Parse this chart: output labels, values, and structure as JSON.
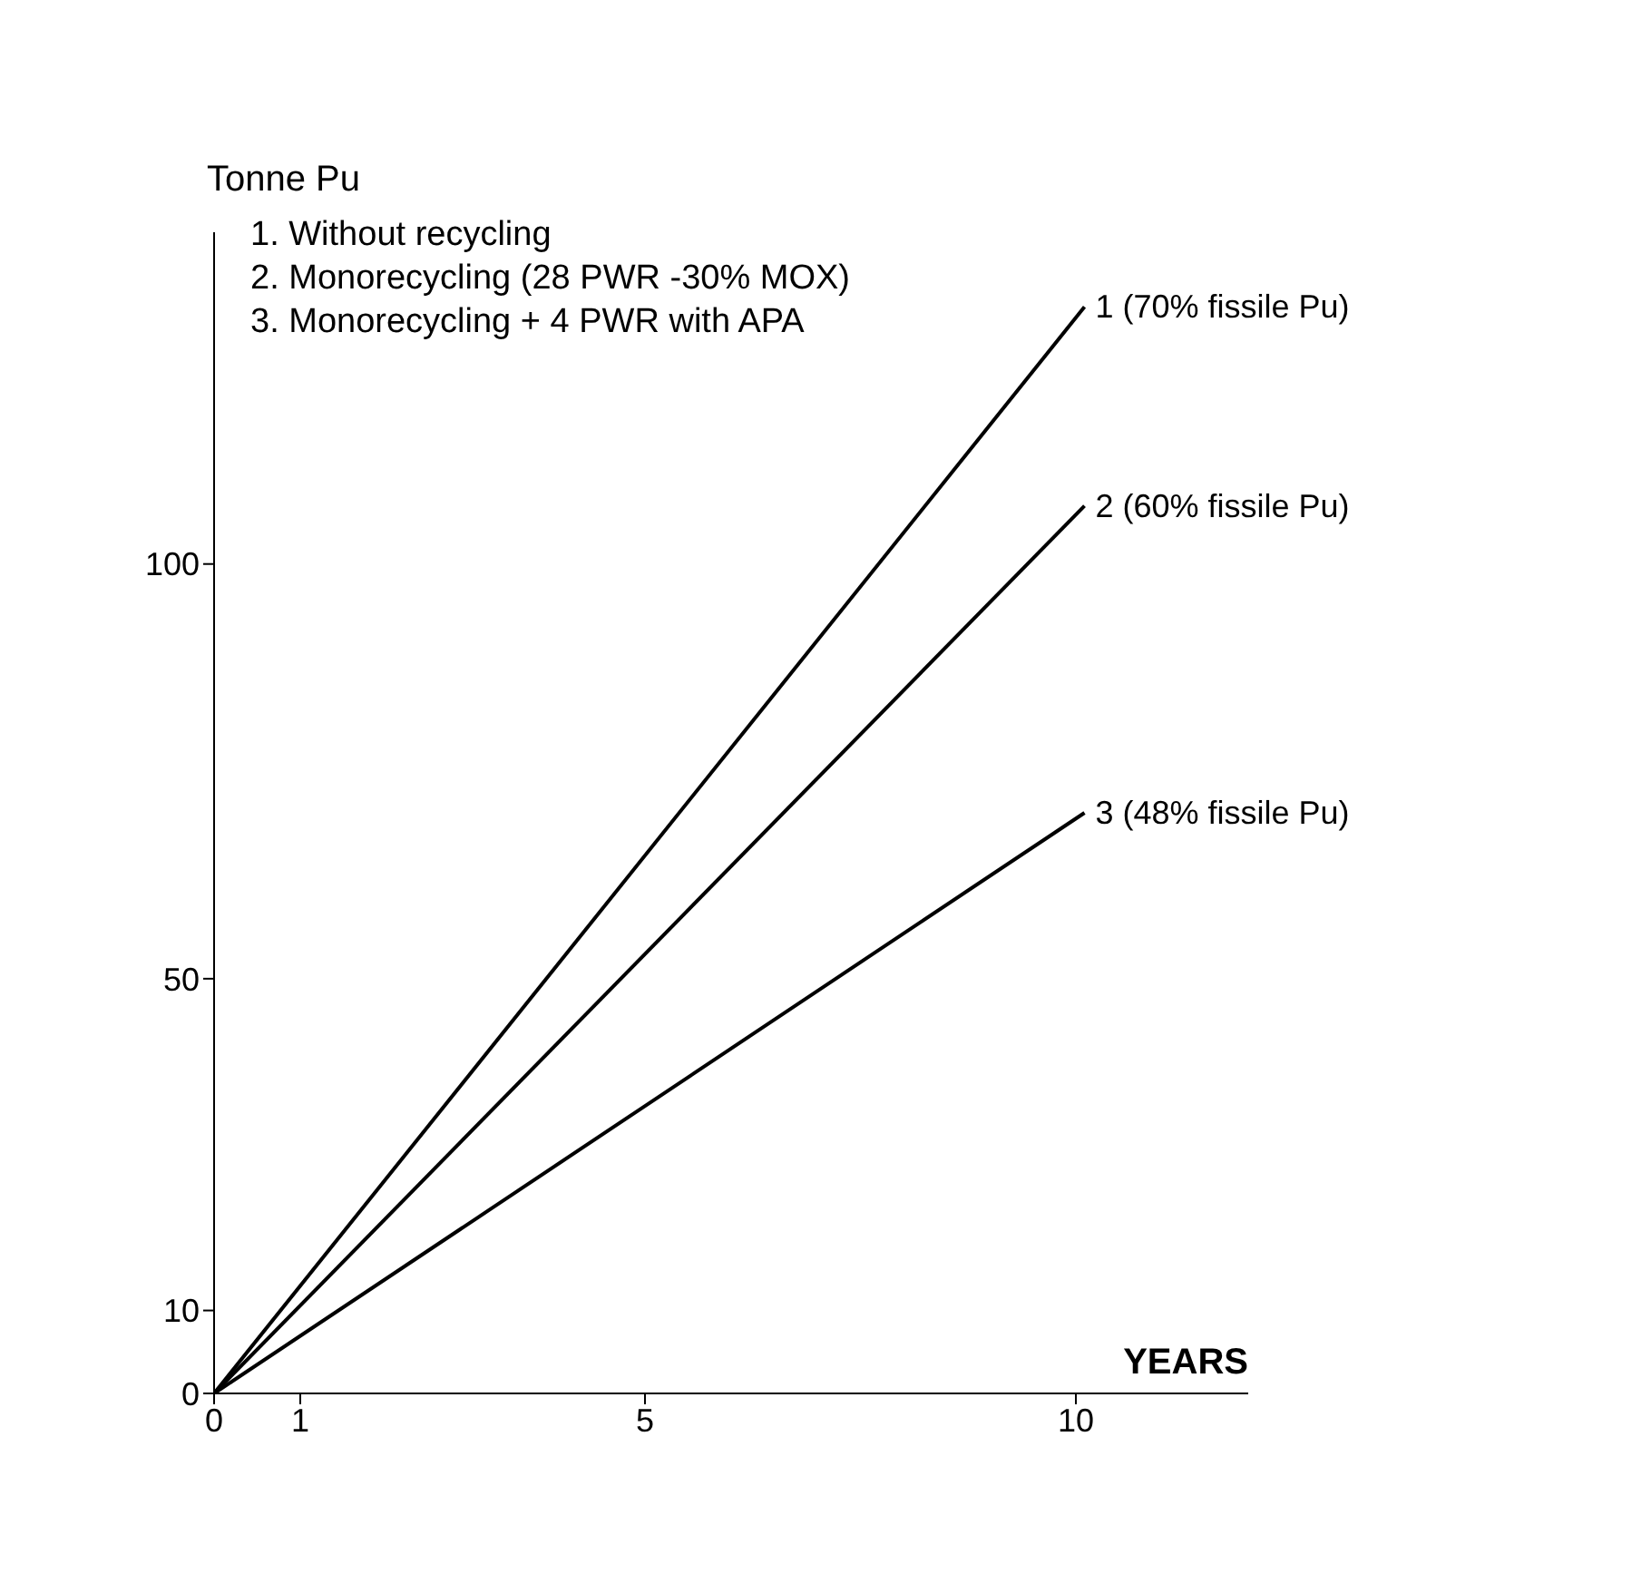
{
  "chart_data": {
    "type": "line",
    "xlabel": "YEARS",
    "ylabel": "Tonne Pu",
    "annotations": [
      "1. Without recycling",
      "2. Monorecycling (28 PWR -30% MOX)",
      "3. Monorecycling + 4 PWR with APA"
    ],
    "x": [
      0,
      10.1
    ],
    "series": [
      {
        "name": "1 (70% fissile Pu)",
        "color": "#000000",
        "values": [
          0,
          131
        ]
      },
      {
        "name": "2 (60% fissile Pu)",
        "color": "#000000",
        "values": [
          0,
          107
        ]
      },
      {
        "name": "3 (48% fissile Pu)",
        "color": "#000000",
        "values": [
          0,
          70
        ]
      }
    ],
    "xlim": [
      0,
      12
    ],
    "xticks": [
      0,
      1,
      5,
      10
    ],
    "ylim": [
      0,
      140
    ],
    "yticks": [
      0,
      10,
      50,
      100
    ],
    "grid": false,
    "legend": false,
    "marker": "none",
    "line_style": "solid"
  }
}
